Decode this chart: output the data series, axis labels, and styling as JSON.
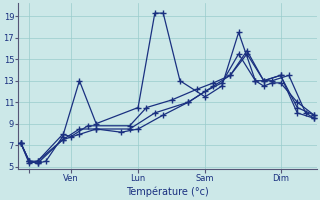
{
  "background_color": "#cce8e8",
  "grid_color": "#99cccc",
  "line_color": "#1a3080",
  "xlabel": "Température (°c)",
  "figsize": [
    3.2,
    2.0
  ],
  "dpi": 100,
  "ylim": [
    4.8,
    20.2
  ],
  "xlim": [
    -0.3,
    35.3
  ],
  "yticks": [
    5,
    7,
    9,
    11,
    13,
    15,
    17,
    19
  ],
  "xtick_positions": [
    1,
    6,
    14,
    22,
    31
  ],
  "xtick_labels": [
    "",
    "Ven",
    "Lun",
    "Sam",
    "Dim"
  ],
  "series": [
    {
      "x": [
        0,
        1,
        2,
        3,
        5,
        7,
        9,
        14,
        16,
        17,
        19,
        22,
        24,
        26,
        28,
        29,
        30,
        31,
        33,
        35
      ],
      "y": [
        7.2,
        5.5,
        5.3,
        5.5,
        7.8,
        13.0,
        9.0,
        10.5,
        19.3,
        19.3,
        13.0,
        11.5,
        12.5,
        17.5,
        13.0,
        12.5,
        12.8,
        12.8,
        11.0,
        9.8
      ]
    },
    {
      "x": [
        0,
        1,
        2,
        5,
        6,
        8,
        13,
        15,
        18,
        21,
        23,
        25,
        27,
        29,
        31,
        33,
        35
      ],
      "y": [
        7.2,
        5.3,
        5.5,
        8.0,
        7.8,
        8.8,
        8.8,
        10.5,
        11.2,
        12.2,
        12.8,
        13.5,
        15.5,
        13.0,
        13.5,
        10.5,
        9.8
      ]
    },
    {
      "x": [
        0,
        1,
        2,
        5,
        7,
        9,
        13,
        16,
        20,
        22,
        24,
        26,
        28,
        30,
        32,
        34,
        35
      ],
      "y": [
        7.2,
        5.5,
        5.5,
        7.5,
        8.5,
        8.5,
        8.5,
        10.0,
        11.0,
        12.0,
        12.8,
        15.5,
        13.0,
        13.0,
        13.5,
        10.0,
        9.5
      ]
    },
    {
      "x": [
        0,
        1,
        2,
        5,
        7,
        9,
        12,
        14,
        17,
        20,
        23,
        25,
        27,
        29,
        31,
        33,
        35
      ],
      "y": [
        7.2,
        5.5,
        5.3,
        7.5,
        8.0,
        8.5,
        8.2,
        8.5,
        9.8,
        11.0,
        12.5,
        13.5,
        15.8,
        13.0,
        13.5,
        10.0,
        9.5
      ]
    }
  ]
}
